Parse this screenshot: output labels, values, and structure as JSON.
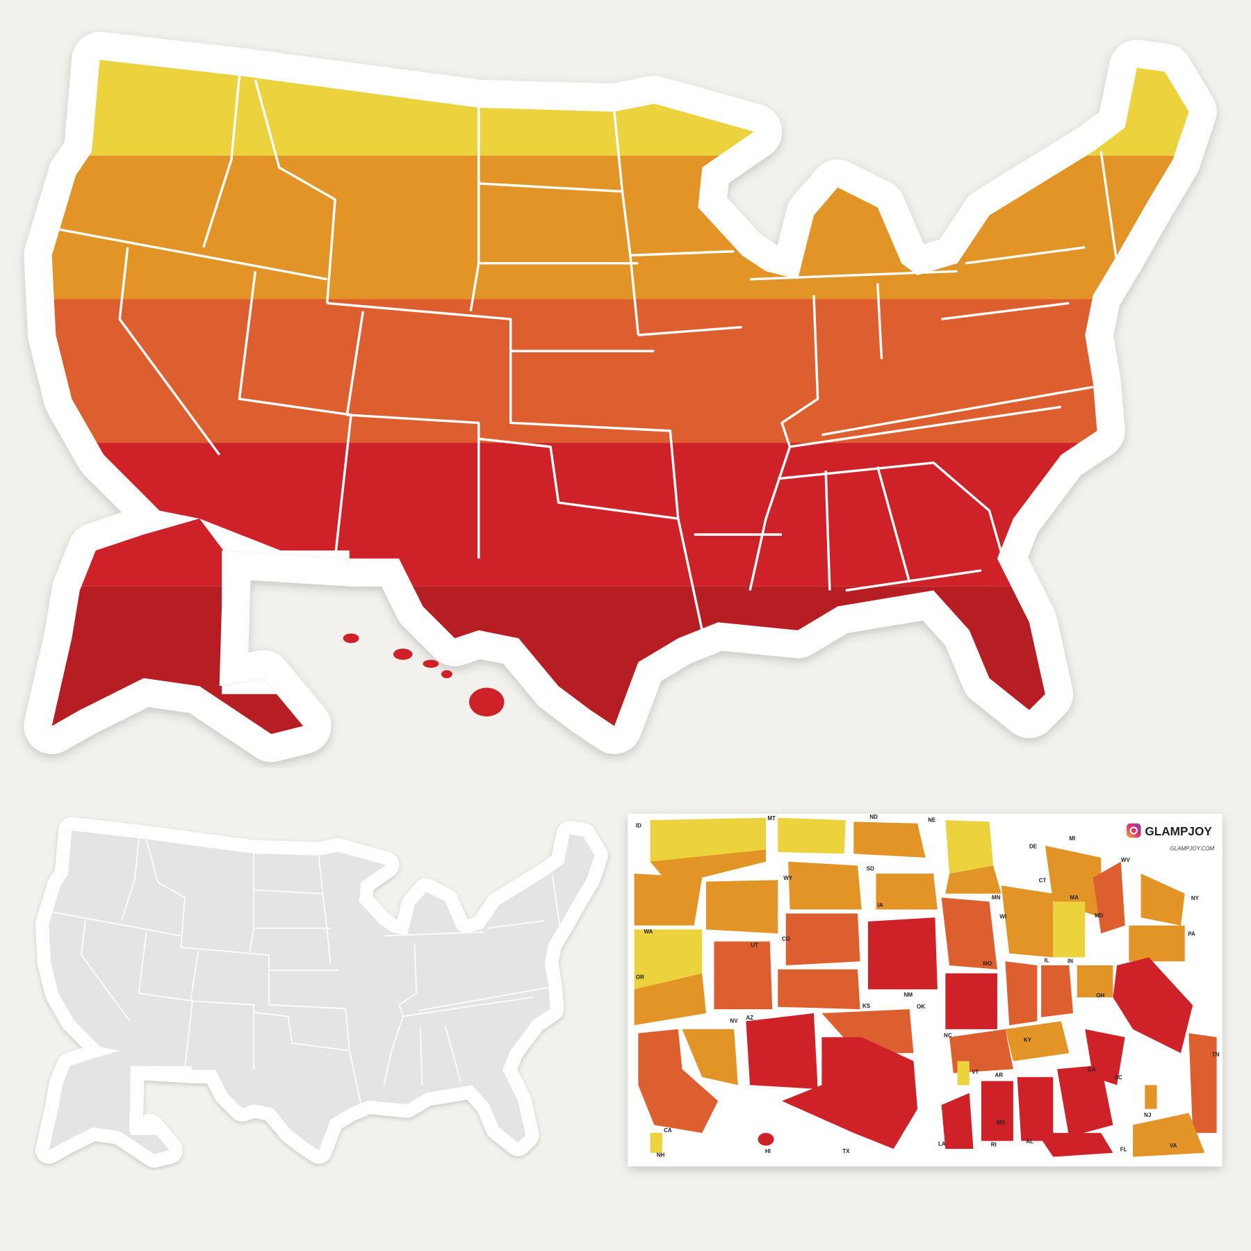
{
  "brand": {
    "name": "GLAMPJOY",
    "url": "GLAMPJOY.COM"
  },
  "sheet_labels": [
    "ID",
    "MT",
    "ND",
    "NE",
    "DE",
    "MI",
    "WY",
    "SD",
    "MN",
    "WV",
    "NY",
    "IA",
    "CT",
    "MA",
    "WI",
    "MD",
    "WA",
    "UT",
    "CO",
    "IL",
    "IN",
    "PA",
    "OR",
    "MO",
    "NM",
    "OK",
    "OH",
    "KS",
    "NV",
    "AZ",
    "NC",
    "KY",
    "VT",
    "AR",
    "TN",
    "SC",
    "GA",
    "MS",
    "TX",
    "HI",
    "LA",
    "AL",
    "RI",
    "FL",
    "NJ",
    "VA",
    "CA",
    "NH"
  ]
}
